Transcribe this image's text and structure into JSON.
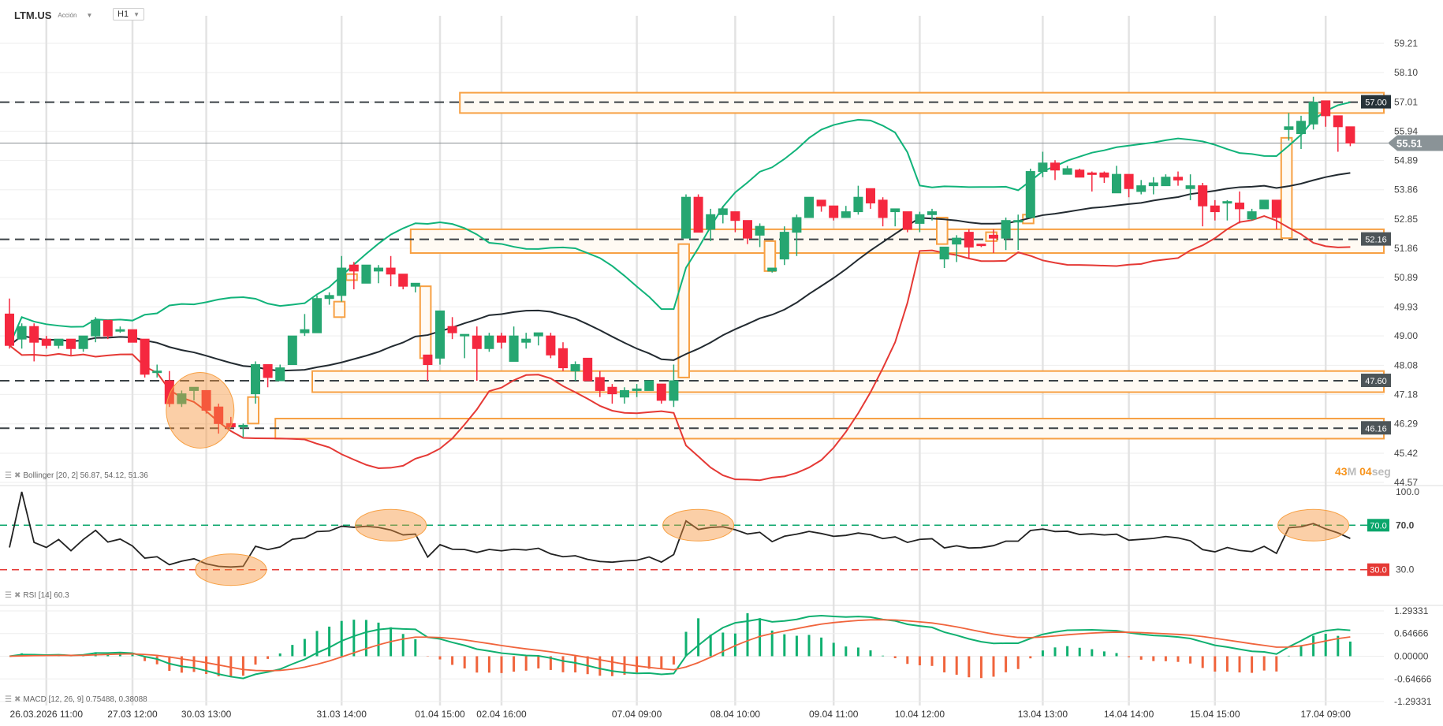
{
  "header": {
    "symbol": "LTM.US",
    "type": "Acción",
    "timeframe": "H1"
  },
  "indicators": {
    "bollinger": "Bollinger [20, 2] 56.87, 54.12, 51.36",
    "rsi": "RSI [14] 60.3",
    "macd": "MACD [12, 26, 9] 0.75488, 0.38088"
  },
  "timer": {
    "minutes": "43",
    "min_unit": "M",
    "seconds": "04",
    "sec_unit": "seg"
  },
  "colors": {
    "up": "#26a671",
    "down": "#f5283f",
    "bb_upper": "#11b37a",
    "bb_mid": "#222a30",
    "bb_lower": "#e53935",
    "zone": "#f7a043",
    "rsi_high": "#0aa66b",
    "rsi_low": "#e53935"
  },
  "chart_data": {
    "type": "candlestick",
    "scale": "log",
    "ylim": [
      44.57,
      59.21
    ],
    "price_ticks": [
      "59.21",
      "58.10",
      "57.01",
      "55.94",
      "54.89",
      "53.86",
      "52.85",
      "51.86",
      "50.89",
      "49.93",
      "49.00",
      "48.08",
      "47.18",
      "46.29",
      "45.42",
      "44.57"
    ],
    "current_price": "55.51",
    "levels": [
      {
        "value": 57.0,
        "label": "57.00",
        "zone": [
          56.6,
          57.35
        ],
        "from": 37
      },
      {
        "value": 52.16,
        "label": "52.16",
        "zone": [
          51.7,
          52.5
        ],
        "from": 33
      },
      {
        "value": 47.6,
        "label": "47.60",
        "zone": [
          47.25,
          47.9
        ],
        "from": 25
      },
      {
        "value": 46.16,
        "label": "46.16",
        "zone": [
          45.85,
          46.45
        ],
        "from": 22
      }
    ],
    "gap_boxes": [
      [
        19,
        20,
        46.3,
        47.1
      ],
      [
        26,
        27,
        49.6,
        50.1
      ],
      [
        27,
        28,
        50.8,
        51.0
      ],
      [
        33,
        34,
        48.3,
        50.6
      ],
      [
        54,
        55,
        47.7,
        52.0
      ],
      [
        61,
        62,
        51.1,
        52.1
      ],
      [
        75,
        76,
        52.0,
        52.9
      ],
      [
        79,
        80,
        52.1,
        52.4
      ],
      [
        82,
        83,
        52.7,
        53.0
      ],
      [
        103,
        104,
        52.2,
        55.7
      ]
    ],
    "highlight_price": [
      {
        "idx": 15.5,
        "value": 46.7
      }
    ],
    "highlight_rsi": [
      {
        "idx": 18,
        "value": 30
      },
      {
        "idx": 31,
        "value": 70
      },
      {
        "idx": 56,
        "value": 70
      },
      {
        "idx": 106,
        "value": 70
      }
    ],
    "x_labels": [
      {
        "idx": 3,
        "label": "26.03.2026 11:00"
      },
      {
        "idx": 10,
        "label": "27.03 12:00"
      },
      {
        "idx": 16,
        "label": "30.03 13:00"
      },
      {
        "idx": 27,
        "label": "31.03 14:00"
      },
      {
        "idx": 35,
        "label": "01.04 15:00"
      },
      {
        "idx": 40,
        "label": "02.04 16:00"
      },
      {
        "idx": 51,
        "label": "07.04 09:00"
      },
      {
        "idx": 59,
        "label": "08.04 10:00"
      },
      {
        "idx": 67,
        "label": "09.04 11:00"
      },
      {
        "idx": 74,
        "label": "10.04 12:00"
      },
      {
        "idx": 84,
        "label": "13.04 13:00"
      },
      {
        "idx": 91,
        "label": "14.04 14:00"
      },
      {
        "idx": 98,
        "label": "15.04 15:00"
      },
      {
        "idx": 107,
        "label": "17.04 09:00"
      }
    ],
    "rsi": {
      "ticks": [
        "100.0",
        "70.0",
        "30.0"
      ],
      "overbought": "70.0",
      "oversold": "30.0"
    },
    "macd": {
      "ticks": [
        "1.29331",
        "0.64666",
        "0.00000",
        "-0.64666",
        "-1.29331"
      ],
      "range": [
        -1.29331,
        1.29331
      ]
    },
    "candles": [
      [
        49.7,
        50.2,
        48.6,
        48.7
      ],
      [
        48.9,
        49.4,
        48.6,
        49.3
      ],
      [
        49.3,
        49.4,
        48.2,
        48.8
      ],
      [
        48.9,
        49.0,
        48.6,
        48.7
      ],
      [
        48.7,
        48.9,
        48.6,
        48.9
      ],
      [
        48.9,
        48.9,
        48.4,
        48.6
      ],
      [
        48.6,
        49.0,
        48.5,
        49.0
      ],
      [
        49.0,
        49.6,
        48.8,
        49.5
      ],
      [
        49.5,
        49.5,
        48.9,
        49.0
      ],
      [
        49.2,
        49.3,
        49.1,
        49.2
      ],
      [
        49.2,
        49.2,
        48.8,
        48.8
      ],
      [
        48.9,
        48.9,
        47.7,
        47.8
      ],
      [
        47.9,
        48.1,
        47.7,
        47.9
      ],
      [
        47.6,
        47.9,
        46.8,
        46.9
      ],
      [
        46.9,
        47.3,
        46.8,
        47.2
      ],
      [
        47.3,
        47.4,
        47.0,
        47.4
      ],
      [
        47.3,
        47.3,
        46.6,
        46.7
      ],
      [
        46.8,
        46.9,
        46.0,
        46.3
      ],
      [
        46.3,
        46.5,
        46.2,
        46.2
      ],
      [
        46.2,
        46.3,
        45.9,
        46.25
      ],
      [
        47.2,
        48.2,
        46.9,
        48.1
      ],
      [
        48.1,
        48.1,
        47.4,
        47.7
      ],
      [
        47.6,
        48.1,
        47.6,
        48.0
      ],
      [
        48.1,
        49.0,
        48.1,
        49.0
      ],
      [
        49.1,
        49.7,
        49.0,
        49.2
      ],
      [
        49.1,
        50.3,
        49.1,
        50.2
      ],
      [
        50.2,
        50.4,
        50.0,
        50.3
      ],
      [
        50.3,
        51.6,
        50.1,
        51.2
      ],
      [
        51.3,
        51.4,
        50.5,
        51.1
      ],
      [
        50.7,
        51.3,
        50.7,
        51.3
      ],
      [
        51.1,
        51.3,
        50.7,
        51.2
      ],
      [
        51.2,
        51.6,
        50.6,
        51.0
      ],
      [
        51.0,
        51.0,
        50.5,
        50.6
      ],
      [
        50.6,
        50.7,
        50.4,
        50.7
      ],
      [
        48.4,
        48.4,
        47.6,
        48.1
      ],
      [
        48.3,
        49.8,
        48.1,
        49.8
      ],
      [
        49.3,
        49.6,
        48.9,
        49.1
      ],
      [
        49.0,
        49.0,
        48.3,
        49.05
      ],
      [
        49.0,
        49.3,
        47.6,
        48.6
      ],
      [
        48.6,
        49.1,
        48.5,
        49.0
      ],
      [
        49.0,
        49.1,
        48.6,
        48.8
      ],
      [
        48.2,
        49.3,
        48.2,
        49.0
      ],
      [
        48.8,
        49.1,
        48.6,
        48.9
      ],
      [
        49.0,
        49.1,
        48.7,
        49.1
      ],
      [
        49.0,
        49.1,
        48.3,
        48.4
      ],
      [
        48.6,
        48.8,
        47.9,
        48.0
      ],
      [
        47.9,
        48.2,
        47.6,
        48.1
      ],
      [
        48.3,
        48.3,
        47.6,
        47.6
      ],
      [
        47.7,
        47.9,
        47.1,
        47.3
      ],
      [
        47.4,
        47.5,
        46.9,
        47.2
      ],
      [
        47.1,
        47.4,
        46.9,
        47.3
      ],
      [
        47.3,
        47.5,
        47.1,
        47.35
      ],
      [
        47.3,
        47.5,
        47.3,
        47.6
      ],
      [
        47.5,
        47.5,
        46.9,
        47.0
      ],
      [
        47.0,
        48.1,
        46.8,
        47.6
      ],
      [
        52.2,
        53.7,
        52.2,
        53.6
      ],
      [
        53.6,
        53.7,
        52.4,
        52.4
      ],
      [
        52.5,
        53.2,
        52.1,
        53.0
      ],
      [
        53.0,
        53.3,
        52.7,
        53.2
      ],
      [
        53.1,
        53.1,
        52.4,
        52.8
      ],
      [
        52.8,
        52.8,
        52.0,
        52.2
      ],
      [
        52.3,
        52.7,
        51.9,
        52.6
      ],
      [
        51.1,
        51.2,
        51.05,
        51.2
      ],
      [
        51.5,
        52.6,
        51.3,
        52.4
      ],
      [
        52.4,
        53.0,
        51.6,
        52.9
      ],
      [
        52.9,
        53.6,
        52.9,
        53.6
      ],
      [
        53.5,
        53.5,
        53.1,
        53.3
      ],
      [
        53.3,
        53.3,
        52.8,
        52.9
      ],
      [
        52.9,
        53.3,
        52.9,
        53.1
      ],
      [
        53.1,
        54.0,
        53.0,
        53.6
      ],
      [
        53.9,
        53.9,
        53.2,
        53.4
      ],
      [
        53.5,
        53.6,
        52.6,
        52.9
      ],
      [
        53.1,
        53.2,
        52.6,
        53.2
      ],
      [
        53.1,
        53.1,
        52.4,
        52.5
      ],
      [
        52.7,
        53.1,
        52.4,
        53.0
      ],
      [
        53.0,
        53.2,
        52.8,
        53.1
      ],
      [
        51.5,
        51.9,
        51.2,
        51.9
      ],
      [
        52.0,
        52.3,
        51.4,
        52.2
      ],
      [
        52.4,
        52.5,
        51.5,
        51.9
      ],
      [
        52.0,
        52.0,
        51.9,
        51.95
      ],
      [
        52.3,
        52.5,
        51.7,
        52.2
      ],
      [
        52.2,
        52.9,
        51.8,
        52.8
      ],
      [
        52.75,
        53.0,
        51.8,
        52.8
      ],
      [
        52.9,
        54.6,
        52.9,
        54.5
      ],
      [
        54.5,
        55.2,
        54.3,
        54.8
      ],
      [
        54.8,
        54.9,
        54.2,
        54.55
      ],
      [
        54.4,
        54.7,
        54.4,
        54.6
      ],
      [
        54.55,
        54.6,
        54.3,
        54.3
      ],
      [
        54.45,
        54.5,
        53.8,
        54.4
      ],
      [
        54.45,
        54.5,
        54.1,
        54.3
      ],
      [
        53.75,
        54.7,
        53.75,
        54.4
      ],
      [
        54.4,
        54.4,
        53.6,
        53.9
      ],
      [
        53.8,
        54.2,
        53.7,
        54.0
      ],
      [
        54.0,
        54.3,
        53.7,
        54.1
      ],
      [
        54.0,
        54.4,
        54.0,
        54.3
      ],
      [
        54.3,
        54.5,
        54.0,
        54.2
      ],
      [
        53.9,
        54.4,
        53.5,
        54.0
      ],
      [
        54.0,
        54.1,
        52.6,
        53.3
      ],
      [
        53.3,
        53.5,
        52.8,
        53.1
      ],
      [
        53.4,
        53.5,
        52.8,
        53.45
      ],
      [
        53.4,
        53.8,
        52.7,
        53.2
      ],
      [
        52.85,
        53.2,
        52.8,
        53.1
      ],
      [
        53.2,
        53.5,
        53.2,
        53.5
      ],
      [
        53.5,
        53.5,
        52.5,
        52.9
      ],
      [
        56.0,
        56.6,
        55.6,
        56.1
      ],
      [
        55.85,
        56.5,
        55.3,
        56.3
      ],
      [
        56.2,
        57.2,
        56.0,
        57.0
      ],
      [
        57.05,
        57.05,
        56.1,
        56.5
      ],
      [
        56.5,
        56.5,
        55.2,
        56.1
      ],
      [
        56.1,
        56.1,
        55.4,
        55.51
      ]
    ]
  }
}
